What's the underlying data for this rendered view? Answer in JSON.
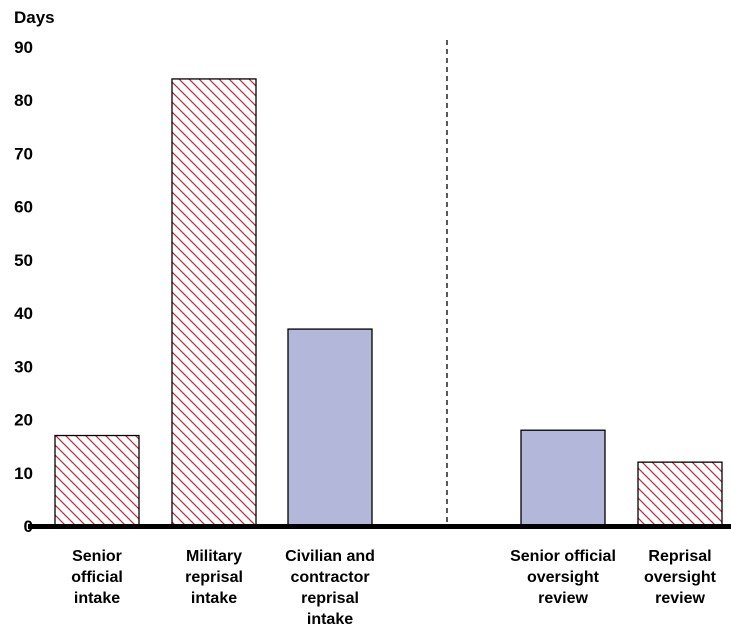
{
  "chart_data": {
    "type": "bar",
    "ylabel": "Days",
    "ylim": [
      0,
      90
    ],
    "yticks": [
      0,
      10,
      20,
      30,
      40,
      50,
      60,
      70,
      80,
      90
    ],
    "grid": false,
    "categories": [
      [
        "Senior",
        "official",
        "intake"
      ],
      [
        "Military",
        "reprisal",
        "intake"
      ],
      [
        "Civilian and",
        "contractor",
        "reprisal",
        "intake"
      ],
      [
        "Senior official",
        "oversight",
        "review"
      ],
      [
        "Reprisal",
        "oversight",
        "review"
      ]
    ],
    "values": [
      17,
      84,
      37,
      18,
      12
    ],
    "styles": [
      "hatched",
      "hatched",
      "solid",
      "solid",
      "hatched"
    ],
    "colors": {
      "hatch": "#c0283c",
      "solid_fill": "#b3b7d9",
      "outline": "#000000",
      "axis": "#000000",
      "divider": "#000000"
    },
    "divider_after_index": 2
  }
}
